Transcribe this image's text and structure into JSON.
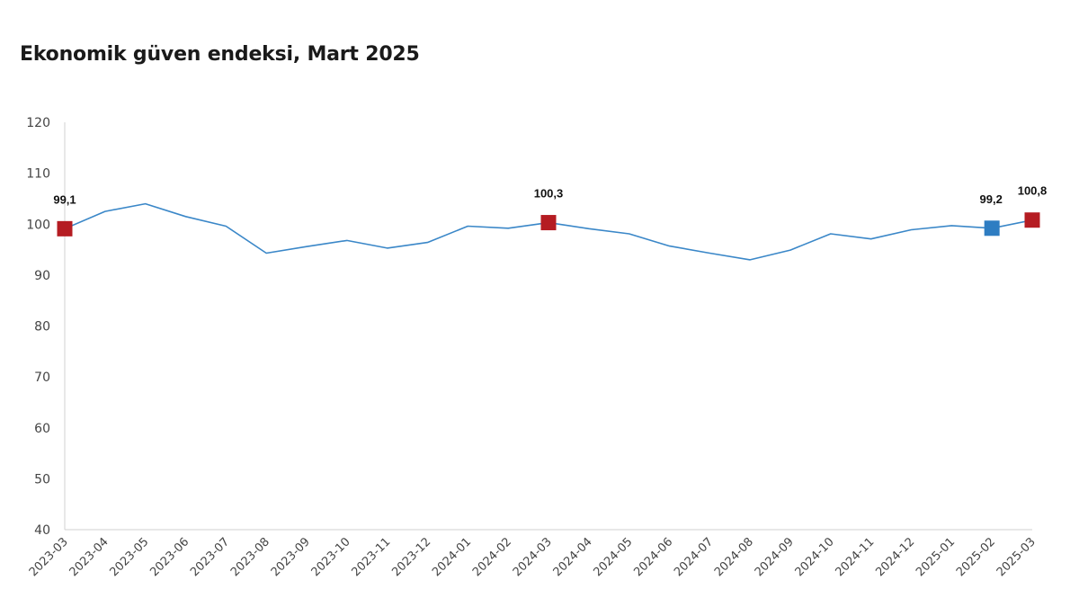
{
  "chart_data": {
    "type": "line",
    "title": "Ekonomik güven endeksi, Mart 2025",
    "xlabel": "",
    "ylabel": "",
    "ylim": [
      40,
      120
    ],
    "yticks": [
      40,
      50,
      60,
      70,
      80,
      90,
      100,
      110,
      120
    ],
    "grid": false,
    "categories": [
      "2023-03",
      "2023-04",
      "2023-05",
      "2023-06",
      "2023-07",
      "2023-08",
      "2023-09",
      "2023-10",
      "2023-11",
      "2023-12",
      "2024-01",
      "2024-02",
      "2024-03",
      "2024-04",
      "2024-05",
      "2024-06",
      "2024-07",
      "2024-08",
      "2024-09",
      "2024-10",
      "2024-11",
      "2024-12",
      "2025-01",
      "2025-02",
      "2025-03"
    ],
    "series": [
      {
        "color": "#3a87c8",
        "values": [
          99.1,
          102.5,
          104.0,
          101.5,
          99.6,
          94.3,
          95.6,
          96.8,
          95.3,
          96.4,
          99.6,
          99.2,
          100.3,
          99.1,
          98.1,
          95.7,
          94.3,
          93.0,
          94.9,
          98.1,
          97.1,
          98.9,
          99.7,
          99.2,
          100.8
        ]
      }
    ],
    "highlighted_points": [
      {
        "category": "2023-03",
        "value": 99.1,
        "label": "99,1",
        "color": "#b51c22"
      },
      {
        "category": "2024-03",
        "value": 100.3,
        "label": "100,3",
        "color": "#b51c22"
      },
      {
        "category": "2025-02",
        "value": 99.2,
        "label": "99,2",
        "color": "#2e7dc2"
      },
      {
        "category": "2025-03",
        "value": 100.8,
        "label": "100,8",
        "color": "#b51c22"
      }
    ]
  }
}
